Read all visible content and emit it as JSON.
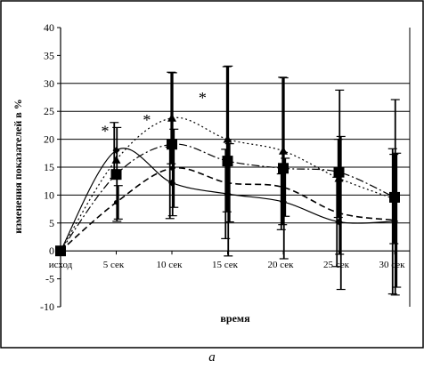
{
  "chart_data": {
    "type": "line",
    "xlabel": "время",
    "ylabel": "изменения показателей в %",
    "caption": "а",
    "categories": [
      "исход",
      "5 сек",
      "10 сек",
      "15 сек",
      "20 сек",
      "25 сек",
      "30 сек"
    ],
    "yticks": [
      -10,
      -5,
      0,
      5,
      10,
      15,
      20,
      25,
      30,
      35,
      40
    ],
    "ylim": [
      -10,
      40
    ],
    "gridlines": [
      5,
      10,
      15,
      20,
      25,
      30
    ],
    "series": [
      {
        "marker": "diamond",
        "line": "solid",
        "values": [
          0,
          18,
          12.2,
          10.2,
          8.8,
          5.2,
          5.3
        ],
        "error": [
          null,
          5,
          6.4,
          8,
          5,
          8,
          13
        ]
      },
      {
        "marker": "triangle",
        "line": "dotted",
        "values": [
          0,
          16.3,
          23.8,
          20,
          17.9,
          13,
          9.3
        ],
        "error": [
          null,
          null,
          8.2,
          13,
          13.2,
          7,
          8
        ]
      },
      {
        "marker": "square",
        "line": "dashed-long",
        "values": [
          0,
          13.7,
          19.1,
          16.1,
          14.8,
          14.1,
          9.6
        ],
        "error": [
          null,
          8.4,
          12.8,
          17,
          16.2,
          14.7,
          17.5
        ]
      },
      {
        "marker": "circle",
        "line": "dashed",
        "values": [
          0,
          8.7,
          14.8,
          12.2,
          11.4,
          6.8,
          5.5
        ],
        "error": [
          null,
          3,
          7,
          7,
          5.2,
          13.7,
          12
        ]
      }
    ],
    "annotations": [
      {
        "text": "*",
        "x": 0.8,
        "y": 20.5
      },
      {
        "text": "*",
        "x": 1.55,
        "y": 22.5
      },
      {
        "text": "*",
        "x": 2.55,
        "y": 26.5
      }
    ]
  }
}
